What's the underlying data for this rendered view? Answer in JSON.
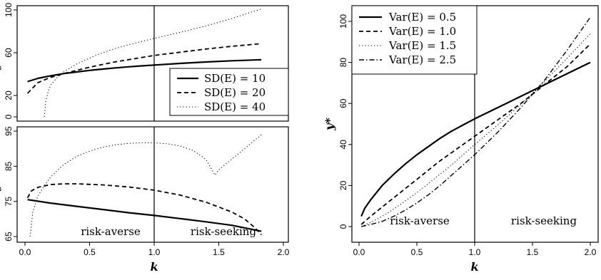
{
  "chart_data": [
    {
      "id": "top-left",
      "type": "line",
      "xlim": [
        0,
        2.0
      ],
      "ylim": [
        0,
        100
      ],
      "yticks": [
        "0",
        "20",
        "60",
        "100"
      ],
      "ytick_values": [
        0,
        20,
        60,
        100
      ],
      "xlabel": "",
      "ylabel": "y*",
      "vline_x": 1.0,
      "legend_position": "bottom-right",
      "series": [
        {
          "name": "SD(E) = 10",
          "dash": "solid",
          "x": [
            0.02,
            0.1,
            0.2,
            0.3,
            0.4,
            0.5,
            0.6,
            0.7,
            0.8,
            0.9,
            1.0,
            1.2,
            1.4,
            1.6,
            1.83
          ],
          "y": [
            33,
            36,
            38.5,
            40.5,
            42,
            43.5,
            44.7,
            45.8,
            46.8,
            47.7,
            48.5,
            50,
            51.3,
            52.5,
            53.5
          ]
        },
        {
          "name": "SD(E) = 20",
          "dash": "dashed",
          "x": [
            0.02,
            0.1,
            0.2,
            0.3,
            0.4,
            0.5,
            0.6,
            0.7,
            0.8,
            0.9,
            1.0,
            1.2,
            1.4,
            1.6,
            1.83
          ],
          "y": [
            22,
            32,
            37,
            40.5,
            43.5,
            46.5,
            49,
            51.5,
            53.5,
            55.5,
            57.5,
            60.5,
            63.5,
            66,
            68.5
          ]
        },
        {
          "name": "SD(E) = 40",
          "dash": "dotted",
          "x": [
            0.15,
            0.16,
            0.18,
            0.2,
            0.25,
            0.3,
            0.4,
            0.5,
            0.6,
            0.7,
            0.8,
            0.9,
            1.0,
            1.2,
            1.4,
            1.6,
            1.83
          ],
          "y": [
            0,
            14,
            24,
            30,
            37,
            42,
            49.5,
            55,
            60,
            64,
            67.5,
            70.5,
            73.5,
            79,
            85,
            92,
            101
          ]
        }
      ]
    },
    {
      "id": "bottom-left",
      "type": "line",
      "xlim": [
        0,
        2.0
      ],
      "ylim": [
        65,
        95
      ],
      "yticks": [
        "65",
        "75",
        "85",
        "95"
      ],
      "ytick_values": [
        65,
        75,
        85,
        95
      ],
      "xticks": [
        "0.0",
        "0.5",
        "1.0",
        "1.5",
        "2.0"
      ],
      "xtick_values": [
        0,
        0.5,
        1.0,
        1.5,
        2.0
      ],
      "xlabel": "k",
      "ylabel": "y*",
      "vline_x": 1.0,
      "regions": {
        "left": "risk-averse",
        "right": "risk-seeking"
      },
      "series": [
        {
          "name": "SD(E) = 10",
          "dash": "solid",
          "x": [
            0.02,
            0.2,
            0.4,
            0.6,
            0.8,
            1.0,
            1.2,
            1.4,
            1.6,
            1.83
          ],
          "y": [
            75.5,
            74.5,
            73.6,
            72.7,
            71.8,
            71,
            70.1,
            69.2,
            68.2,
            66.5
          ]
        },
        {
          "name": "SD(E) = 20",
          "dash": "dashed",
          "x": [
            0.02,
            0.05,
            0.1,
            0.2,
            0.3,
            0.4,
            0.6,
            0.8,
            1.0,
            1.2,
            1.4,
            1.6,
            1.7,
            1.78,
            1.83
          ],
          "y": [
            76,
            78,
            79,
            79.8,
            80,
            80,
            79.7,
            79.1,
            78.2,
            76.8,
            74.8,
            72,
            70,
            67.5,
            65.5
          ]
        },
        {
          "name": "SD(E) = 40",
          "dash": "dotted",
          "x": [
            0.04,
            0.06,
            0.1,
            0.15,
            0.2,
            0.3,
            0.4,
            0.5,
            0.6,
            0.7,
            0.8,
            0.9,
            1.0,
            1.1,
            1.2,
            1.3,
            1.4,
            1.47,
            1.5,
            1.6,
            1.7,
            1.83
          ],
          "y": [
            65,
            72,
            76.5,
            79.5,
            82,
            85.5,
            87.8,
            89.3,
            90.4,
            91.1,
            91.5,
            91.7,
            91.7,
            91.4,
            90.8,
            89.5,
            87,
            82.5,
            84,
            87,
            90,
            94
          ]
        }
      ]
    },
    {
      "id": "right",
      "type": "line",
      "xlim": [
        0,
        2.0
      ],
      "ylim": [
        0,
        100
      ],
      "yticks": [
        "0",
        "20",
        "40",
        "60",
        "80",
        "100"
      ],
      "ytick_values": [
        0,
        20,
        40,
        60,
        80,
        100
      ],
      "xticks": [
        "0.0",
        "0.5",
        "1.0",
        "1.5",
        "2.0"
      ],
      "xtick_values": [
        0,
        0.5,
        1.0,
        1.5,
        2.0
      ],
      "xlabel": "k",
      "ylabel": "y*",
      "vline_x": 1.0,
      "regions": {
        "left": "risk-averse",
        "right": "risk-seeking"
      },
      "legend_position": "top-left",
      "series": [
        {
          "name": "Var(E) = 0.5",
          "dash": "solid",
          "x": [
            0.02,
            0.05,
            0.1,
            0.2,
            0.3,
            0.4,
            0.5,
            0.6,
            0.7,
            0.8,
            0.9,
            1.0,
            1.2,
            1.4,
            1.6,
            1.8,
            2.0
          ],
          "y": [
            5,
            9,
            13,
            20,
            25.5,
            30.5,
            35,
            39,
            43,
            46.5,
            49.5,
            52.5,
            58,
            63.5,
            69,
            74.5,
            80
          ]
        },
        {
          "name": "Var(E) = 1.0",
          "dash": "dashed",
          "x": [
            0.02,
            0.1,
            0.2,
            0.3,
            0.4,
            0.5,
            0.6,
            0.7,
            0.8,
            0.9,
            1.0,
            1.2,
            1.4,
            1.6,
            1.8,
            2.0
          ],
          "y": [
            1,
            5,
            9.5,
            14,
            18.5,
            23,
            27.5,
            32,
            36,
            40,
            44,
            52,
            60,
            69,
            78,
            89
          ]
        },
        {
          "name": "Var(E) = 1.5",
          "dash": "dotted",
          "x": [
            0.02,
            0.1,
            0.2,
            0.3,
            0.4,
            0.5,
            0.6,
            0.7,
            0.8,
            0.9,
            1.0,
            1.2,
            1.4,
            1.6,
            1.8,
            2.0
          ],
          "y": [
            0,
            2,
            5,
            8.5,
            12.5,
            16.5,
            21,
            25.5,
            30,
            35,
            40,
            49.5,
            59.5,
            70.5,
            82,
            94
          ]
        },
        {
          "name": "Var(E) = 2.5",
          "dash": "dashdot",
          "x": [
            0.02,
            0.1,
            0.2,
            0.3,
            0.4,
            0.5,
            0.6,
            0.7,
            0.8,
            0.9,
            1.0,
            1.2,
            1.4,
            1.6,
            1.8,
            2.0
          ],
          "y": [
            0,
            1,
            2.5,
            5,
            8,
            11.5,
            15.5,
            20,
            25,
            30,
            35,
            46,
            58,
            71,
            86,
            102
          ]
        }
      ]
    }
  ]
}
